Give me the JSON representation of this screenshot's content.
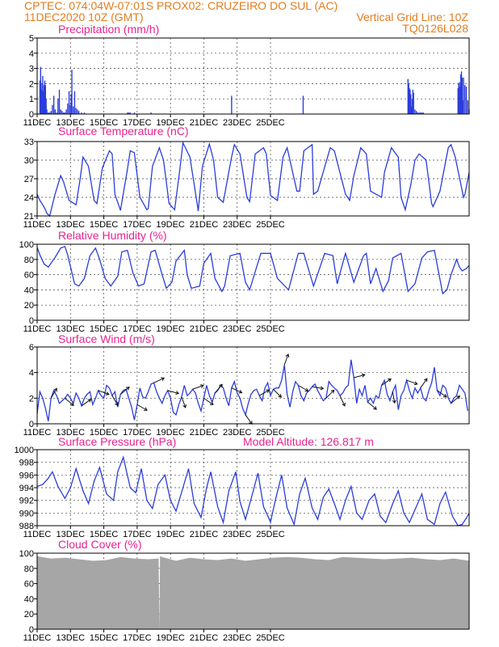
{
  "header": {
    "line1_left": "CPTEC:   074:04W-07:01S   PROX02: CRUZEIRO DO SUL (AC)",
    "line2_left": "11DEC2020 10Z (GMT)",
    "line2_right": "Vertical Grid Line: 10Z",
    "line3_right": "TQ0126L028"
  },
  "colors": {
    "header_text": "#e37c1e",
    "panel_title": "#e6238f",
    "series_line": "#2b3ddb",
    "cloud_fill": "#a6a6a6"
  },
  "x_tick_labels": [
    "11DEC",
    "13DEC",
    "15DEC",
    "17DEC",
    "19DEC",
    "21DEC",
    "23DEC",
    "25DEC"
  ],
  "chart_data": [
    {
      "id": "precip",
      "type": "bar",
      "title": "Precipitation (mm/h)",
      "ylim": [
        0,
        5
      ],
      "yticks": [
        0,
        1,
        2,
        3,
        4,
        5
      ],
      "grid": true,
      "x_hours": [
        4,
        5,
        6,
        7,
        8,
        9,
        10,
        11,
        12,
        13,
        14,
        16,
        18,
        20,
        22,
        24,
        26,
        28,
        30,
        32,
        34,
        36,
        38,
        40,
        42,
        44,
        46,
        48,
        49,
        50,
        52,
        54,
        56,
        58,
        60,
        64,
        68,
        130,
        132,
        134,
        140,
        164,
        280,
        383,
        534,
        535,
        536,
        537,
        538,
        539,
        540,
        541,
        542,
        544,
        546,
        548,
        550,
        552,
        554,
        556,
        606,
        607,
        608,
        609,
        610,
        611,
        612,
        613,
        614,
        616,
        618,
        620,
        622
      ],
      "values": [
        2.2,
        3.1,
        1.6,
        2.0,
        2.5,
        1.5,
        1.9,
        2.2,
        1.9,
        1.0,
        0.3,
        0.1,
        0.1,
        0.2,
        0.6,
        1.2,
        0.3,
        0.1,
        1.0,
        1.6,
        0.3,
        0.2,
        0.1,
        0.1,
        0.3,
        0.7,
        1.5,
        0.6,
        1.3,
        2.9,
        0.5,
        1.5,
        0.4,
        0.3,
        0.2,
        0.1,
        0.1,
        0.1,
        0.1,
        0.1,
        0.1,
        0.1,
        1.2,
        1.2,
        2.3,
        2.0,
        1.7,
        1.6,
        1.3,
        0.5,
        1.0,
        1.6,
        1.4,
        0.3,
        0.2,
        0.1,
        0.1,
        0.1,
        0.1,
        0.1,
        1.7,
        2.0,
        2.1,
        1.8,
        2.6,
        2.8,
        2.4,
        0.9,
        2.4,
        1.9,
        1.8,
        0.9,
        0.3
      ]
    },
    {
      "id": "temp",
      "type": "line",
      "title": "Surface Temperature (nC)",
      "ylim": [
        21,
        33
      ],
      "yticks": [
        21,
        24,
        27,
        30,
        33
      ],
      "grid": true,
      "x": [
        0,
        4,
        8,
        12,
        14,
        18,
        26,
        34,
        38,
        46,
        56,
        62,
        66,
        74,
        82,
        86,
        94,
        104,
        108,
        112,
        120,
        130,
        134,
        140,
        148,
        158,
        160,
        166,
        176,
        182,
        190,
        198,
        206,
        210,
        220,
        230,
        232,
        238,
        248,
        254,
        260,
        268,
        280,
        284,
        292,
        302,
        306,
        314,
        326,
        330,
        336,
        346,
        354,
        360,
        374,
        378,
        384,
        396,
        398,
        404,
        422,
        428,
        444,
        450,
        456,
        466,
        474,
        480,
        496,
        500,
        510,
        520,
        524,
        530,
        538,
        544,
        550,
        560,
        568,
        570,
        580,
        592,
        596,
        602,
        614,
        616,
        622
      ],
      "values": [
        24.5,
        23.5,
        22.8,
        22.0,
        21.4,
        21.0,
        24.6,
        27.5,
        26.5,
        23.5,
        22.8,
        27.0,
        30.5,
        29.0,
        23.5,
        23.0,
        28.8,
        31.5,
        31.0,
        24.5,
        21.9,
        28.5,
        31.5,
        31.2,
        24.0,
        22.0,
        22.2,
        29.0,
        32.0,
        30.0,
        23.0,
        22.0,
        29.0,
        32.8,
        30.5,
        23.3,
        21.8,
        29.0,
        32.6,
        30.0,
        24.0,
        23.2,
        30.5,
        32.5,
        31.0,
        24.0,
        23.3,
        31.0,
        32.0,
        31.0,
        24.3,
        23.5,
        30.5,
        32.0,
        25.0,
        25.0,
        31.5,
        32.5,
        24.5,
        25.0,
        32.0,
        31.5,
        24.5,
        23.5,
        27.5,
        32.0,
        31.0,
        25.0,
        24.0,
        28.0,
        32.0,
        30.5,
        24.0,
        22.0,
        26.0,
        30.0,
        31.0,
        30.0,
        23.0,
        22.5,
        25.0,
        32.0,
        32.5,
        30.5,
        24.0,
        24.5,
        28.0
      ]
    },
    {
      "id": "rh",
      "type": "line",
      "title": "Relative Humidity (%)",
      "ylim": [
        0,
        100
      ],
      "yticks": [
        0,
        20,
        40,
        60,
        80,
        100
      ],
      "grid": true,
      "x": [
        0,
        4,
        10,
        16,
        26,
        34,
        40,
        44,
        54,
        60,
        68,
        76,
        84,
        90,
        98,
        106,
        116,
        122,
        130,
        138,
        146,
        154,
        164,
        170,
        180,
        186,
        194,
        200,
        212,
        216,
        222,
        234,
        240,
        250,
        256,
        266,
        270,
        278,
        292,
        300,
        306,
        322,
        336,
        346,
        362,
        376,
        384,
        398,
        414,
        426,
        428,
        432,
        442,
        444,
        456,
        470,
        474,
        480,
        488,
        498,
        506,
        512,
        524,
        534,
        544,
        554,
        562,
        572,
        584,
        590,
        596,
        604,
        608,
        612,
        618,
        622
      ],
      "values": [
        96,
        86,
        74,
        70,
        83,
        95,
        97,
        86,
        48,
        45,
        55,
        85,
        95,
        80,
        55,
        45,
        58,
        90,
        92,
        62,
        45,
        48,
        90,
        92,
        60,
        42,
        50,
        78,
        92,
        60,
        42,
        45,
        75,
        88,
        55,
        38,
        45,
        85,
        88,
        50,
        40,
        88,
        88,
        55,
        40,
        88,
        88,
        45,
        88,
        85,
        72,
        48,
        82,
        88,
        50,
        85,
        88,
        48,
        68,
        38,
        52,
        82,
        88,
        38,
        48,
        82,
        90,
        92,
        35,
        40,
        60,
        80,
        70,
        65,
        68,
        72
      ]
    },
    {
      "id": "wind",
      "type": "line",
      "title": "Surface Wind (m/s)",
      "ylim": [
        0,
        6
      ],
      "yticks": [
        0,
        2,
        4,
        6
      ],
      "grid": true,
      "x": [
        0,
        4,
        8,
        12,
        16,
        20,
        24,
        28,
        32,
        36,
        40,
        44,
        48,
        52,
        56,
        60,
        64,
        68,
        72,
        76,
        80,
        84,
        88,
        92,
        96,
        100,
        104,
        108,
        112,
        116,
        120,
        124,
        128,
        132,
        136,
        140,
        144,
        148,
        152,
        156,
        160,
        164,
        168,
        172,
        176,
        180,
        184,
        188,
        192,
        196,
        200,
        204,
        208,
        212,
        216,
        220,
        224,
        228,
        232,
        236,
        240,
        244,
        248,
        252,
        256,
        260,
        264,
        268,
        272,
        276,
        280,
        284,
        288,
        292,
        296,
        300,
        304,
        308,
        312,
        316,
        320,
        324,
        328,
        332,
        336,
        340,
        344,
        348,
        352,
        356,
        360,
        364,
        368,
        372,
        376,
        380,
        384,
        388,
        392,
        396,
        400,
        404,
        408,
        412,
        416,
        420,
        424,
        428,
        432,
        436,
        440,
        444,
        448,
        452,
        456,
        460,
        464,
        468,
        472,
        476,
        480,
        484,
        488,
        492,
        496,
        500,
        504,
        508,
        512,
        516,
        520,
        524,
        528,
        532,
        536,
        540,
        544,
        548,
        552,
        556,
        560,
        564,
        568,
        572,
        576,
        580,
        584,
        588,
        592,
        596,
        600,
        604,
        608,
        612,
        616,
        620
      ],
      "values": [
        0.8,
        2.5,
        2.0,
        1.2,
        0.2,
        2.0,
        2.6,
        2.2,
        1.6,
        1.8,
        2.0,
        2.3,
        2.0,
        1.6,
        2.4,
        2.0,
        1.4,
        2.0,
        2.3,
        2.5,
        1.5,
        2.0,
        2.6,
        2.2,
        2.0,
        3.0,
        2.8,
        2.2,
        2.5,
        1.3,
        2.3,
        2.6,
        2.7,
        2.0,
        1.3,
        0.3,
        1.5,
        2.8,
        2.1,
        2.0,
        2.5,
        3.1,
        3.2,
        2.5,
        2.0,
        1.6,
        2.2,
        2.6,
        2.0,
        0.9,
        0.7,
        1.5,
        2.1,
        3.0,
        2.2,
        2.4,
        2.7,
        2.4,
        1.6,
        1.0,
        2.0,
        3.0,
        2.2,
        1.7,
        2.4,
        2.6,
        3.0,
        2.8,
        2.0,
        1.4,
        2.8,
        3.3,
        2.4,
        2.0,
        1.2,
        0.7,
        1.6,
        2.3,
        2.6,
        2.7,
        2.2,
        1.8,
        2.8,
        3.2,
        2.2,
        2.7,
        2.8,
        2.8,
        3.4,
        4.6,
        2.3,
        1.3,
        2.5,
        3.3,
        3.0,
        2.2,
        1.8,
        2.4,
        2.6,
        2.9,
        3.1,
        2.6,
        2.2,
        1.8,
        2.0,
        3.3,
        3.0,
        2.8,
        2.6,
        2.2,
        2.4,
        2.8,
        3.0,
        5.0,
        3.6,
        1.6,
        2.7,
        2.2,
        3.0,
        1.7,
        2.0,
        1.6,
        2.2,
        2.0,
        3.0,
        3.4,
        2.3,
        1.8,
        2.5,
        3.0,
        1.1,
        2.2,
        2.6,
        3.4,
        2.6,
        2.0,
        2.8,
        2.4,
        2.8,
        2.0,
        1.8,
        2.6,
        3.2,
        4.4,
        2.6,
        2.2,
        3.0,
        2.8,
        2.0,
        1.6,
        2.0,
        2.2,
        3.0,
        2.7,
        2.4,
        1.0
      ]
    },
    {
      "id": "pres",
      "type": "line",
      "title": "Surface Pressure (hPa)",
      "annotation": "Model Altitude: 126.817  m",
      "ylim": [
        988,
        1000
      ],
      "yticks": [
        988,
        990,
        992,
        994,
        996,
        998,
        1000
      ],
      "grid": true,
      "x": [
        0,
        8,
        16,
        22,
        30,
        40,
        48,
        56,
        66,
        74,
        82,
        90,
        100,
        110,
        116,
        124,
        134,
        142,
        150,
        158,
        166,
        174,
        184,
        192,
        200,
        210,
        218,
        226,
        236,
        244,
        250,
        260,
        268,
        276,
        286,
        292,
        300,
        310,
        318,
        326,
        336,
        344,
        352,
        360,
        370,
        378,
        386,
        396,
        404,
        412,
        420,
        428,
        436,
        444,
        452,
        460,
        468,
        478,
        486,
        494,
        502,
        512,
        520,
        528,
        536,
        544,
        554,
        562,
        572,
        580,
        588,
        598,
        606,
        612,
        618,
        622
      ],
      "values": [
        994.2,
        994.5,
        995.5,
        996.5,
        994.2,
        992.3,
        994.0,
        997.0,
        993.5,
        991.5,
        995.0,
        997.2,
        993.0,
        992.0,
        996.5,
        998.8,
        994.0,
        993.2,
        997.0,
        992.0,
        990.7,
        994.5,
        996.0,
        992.0,
        990.3,
        994.0,
        997.0,
        991.5,
        989.3,
        994.0,
        996.5,
        991.0,
        988.5,
        993.5,
        996.5,
        991.8,
        989.0,
        993.0,
        996.3,
        991.0,
        988.6,
        992.5,
        996.0,
        990.8,
        988.2,
        993.0,
        995.5,
        990.8,
        989.0,
        992.5,
        993.8,
        991.5,
        989.0,
        992.0,
        994.2,
        990.0,
        989.0,
        992.0,
        993.0,
        989.5,
        988.5,
        991.5,
        993.5,
        990.0,
        988.5,
        990.5,
        993.0,
        989.0,
        988.2,
        991.5,
        993.3,
        989.5,
        988.0,
        988.2,
        989.2,
        990.0
      ]
    },
    {
      "id": "cloud",
      "type": "area",
      "title": "Cloud Cover (%)",
      "ylim": [
        0,
        100
      ],
      "yticks": [
        0,
        20,
        40,
        60,
        80,
        100
      ],
      "grid": true,
      "x": [
        0,
        20,
        40,
        60,
        80,
        100,
        120,
        140,
        160,
        175,
        176,
        177,
        180,
        200,
        220,
        240,
        260,
        280,
        300,
        320,
        340,
        360,
        380,
        400,
        420,
        440,
        460,
        480,
        500,
        520,
        540,
        560,
        580,
        600,
        622
      ],
      "values": [
        96,
        93,
        94,
        92,
        90,
        91,
        95,
        93,
        92,
        93,
        0,
        96,
        95,
        90,
        94,
        92,
        91,
        93,
        90,
        92,
        94,
        95,
        94,
        92,
        91,
        95,
        94,
        93,
        92,
        93,
        94,
        92,
        91,
        93,
        90
      ]
    }
  ]
}
